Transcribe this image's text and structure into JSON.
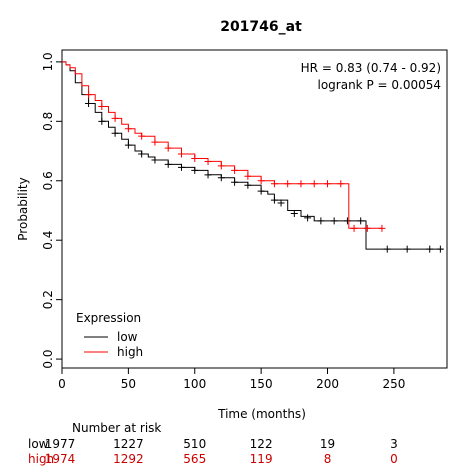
{
  "chart_data": {
    "type": "line",
    "title": "201746_at",
    "xlabel": "Time (months)",
    "ylabel": "Probability",
    "xlim": [
      0,
      290
    ],
    "ylim": [
      -0.03,
      1.04
    ],
    "x_ticks": [
      0,
      50,
      100,
      150,
      200,
      250
    ],
    "y_ticks": [
      0.0,
      0.2,
      0.4,
      0.6,
      0.8,
      1.0
    ],
    "y_tick_labels": [
      "0.0",
      "0.2",
      "0.4",
      "0.6",
      "0.8",
      "1.0"
    ],
    "grid": false,
    "annotations": [
      "HR = 0.83 (0.74 - 0.92)",
      "logrank P = 0.00054"
    ],
    "legend": {
      "title": "Expression",
      "position": "bottom-left",
      "entries": [
        {
          "label": "low",
          "color": "#000000"
        },
        {
          "label": "high",
          "color": "#ff0000"
        }
      ]
    },
    "series": [
      {
        "name": "low",
        "color": "#000000",
        "x": [
          0,
          3,
          6,
          10,
          15,
          20,
          25,
          30,
          35,
          40,
          45,
          50,
          55,
          60,
          65,
          70,
          80,
          90,
          100,
          110,
          120,
          130,
          140,
          150,
          155,
          160,
          170,
          180,
          190,
          200,
          210,
          220,
          229,
          235,
          260,
          287
        ],
        "y": [
          1.0,
          0.99,
          0.97,
          0.93,
          0.89,
          0.86,
          0.83,
          0.8,
          0.78,
          0.76,
          0.74,
          0.72,
          0.7,
          0.69,
          0.68,
          0.67,
          0.655,
          0.645,
          0.635,
          0.62,
          0.61,
          0.595,
          0.585,
          0.565,
          0.555,
          0.535,
          0.5,
          0.48,
          0.465,
          0.465,
          0.465,
          0.465,
          0.37,
          0.37,
          0.37,
          0.37
        ],
        "censor_x": [
          20,
          30,
          40,
          50,
          60,
          70,
          80,
          90,
          100,
          110,
          120,
          130,
          140,
          150,
          160,
          165,
          175,
          185,
          195,
          205,
          215,
          225,
          245,
          260,
          277,
          285
        ],
        "censor_y": [
          0.86,
          0.8,
          0.76,
          0.72,
          0.69,
          0.67,
          0.655,
          0.645,
          0.635,
          0.62,
          0.61,
          0.595,
          0.585,
          0.565,
          0.535,
          0.525,
          0.49,
          0.475,
          0.465,
          0.465,
          0.465,
          0.465,
          0.37,
          0.37,
          0.37,
          0.37
        ]
      },
      {
        "name": "high",
        "color": "#ff0000",
        "x": [
          0,
          3,
          6,
          10,
          15,
          20,
          25,
          30,
          35,
          40,
          45,
          50,
          55,
          60,
          70,
          80,
          90,
          100,
          110,
          120,
          130,
          140,
          150,
          160,
          170,
          180,
          190,
          200,
          216,
          230,
          241
        ],
        "y": [
          1.0,
          0.99,
          0.98,
          0.96,
          0.92,
          0.89,
          0.87,
          0.85,
          0.83,
          0.81,
          0.79,
          0.775,
          0.76,
          0.75,
          0.73,
          0.71,
          0.69,
          0.675,
          0.665,
          0.65,
          0.635,
          0.615,
          0.6,
          0.59,
          0.59,
          0.59,
          0.59,
          0.59,
          0.44,
          0.44,
          0.44
        ],
        "censor_x": [
          20,
          30,
          40,
          50,
          60,
          70,
          80,
          90,
          100,
          110,
          120,
          130,
          140,
          150,
          160,
          170,
          180,
          190,
          200,
          210,
          220,
          230,
          241
        ],
        "censor_y": [
          0.89,
          0.85,
          0.81,
          0.775,
          0.75,
          0.73,
          0.71,
          0.69,
          0.675,
          0.665,
          0.65,
          0.635,
          0.615,
          0.6,
          0.59,
          0.59,
          0.59,
          0.59,
          0.59,
          0.59,
          0.44,
          0.44,
          0.44
        ]
      }
    ],
    "risk_table": {
      "title": "Number at risk",
      "times": [
        0,
        50,
        100,
        150,
        200,
        250
      ],
      "rows": [
        {
          "label": "low",
          "color": "#000000",
          "counts": [
            "1977",
            "1227",
            "510",
            "122",
            "19",
            "3"
          ]
        },
        {
          "label": "high",
          "color": "#cc0000",
          "counts": [
            "1974",
            "1292",
            "565",
            "119",
            "8",
            "0"
          ]
        }
      ]
    }
  }
}
